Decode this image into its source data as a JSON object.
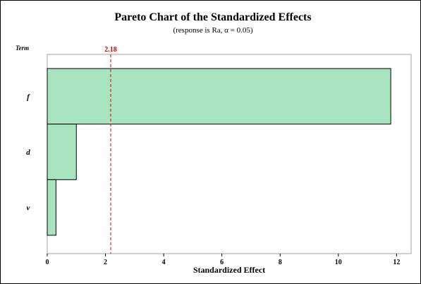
{
  "chart_data": {
    "type": "bar",
    "orientation": "horizontal",
    "title": "Pareto Chart of the Standardized Effects",
    "subtitle": "(response is Ra, α = 0.05)",
    "ylabel": "Term",
    "xlabel": "Standardized Effect",
    "categories": [
      "f",
      "d",
      "v"
    ],
    "values": [
      11.8,
      1.0,
      0.3
    ],
    "xlim": [
      0,
      12.5
    ],
    "xticks": [
      "0",
      "2",
      "4",
      "6",
      "8",
      "10",
      "12"
    ],
    "reference_line": {
      "value": 2.18,
      "label": "2.18",
      "style": "dashed"
    },
    "colors": {
      "bar_fill": "#a8e4c0",
      "bar_stroke": "#000000",
      "reference_line": "#cc0000"
    },
    "grid": false,
    "legend": "none"
  }
}
